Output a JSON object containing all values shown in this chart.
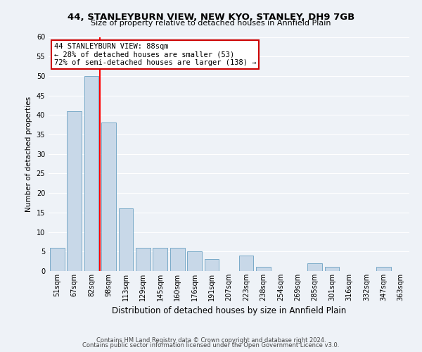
{
  "title": "44, STANLEYBURN VIEW, NEW KYO, STANLEY, DH9 7GB",
  "subtitle": "Size of property relative to detached houses in Annfield Plain",
  "xlabel": "Distribution of detached houses by size in Annfield Plain",
  "ylabel": "Number of detached properties",
  "bin_labels": [
    "51sqm",
    "67sqm",
    "82sqm",
    "98sqm",
    "113sqm",
    "129sqm",
    "145sqm",
    "160sqm",
    "176sqm",
    "191sqm",
    "207sqm",
    "223sqm",
    "238sqm",
    "254sqm",
    "269sqm",
    "285sqm",
    "301sqm",
    "316sqm",
    "332sqm",
    "347sqm",
    "363sqm"
  ],
  "bar_heights": [
    6,
    41,
    50,
    38,
    16,
    6,
    6,
    6,
    5,
    3,
    0,
    4,
    1,
    0,
    0,
    2,
    1,
    0,
    0,
    1,
    0
  ],
  "bar_color": "#c8d8e8",
  "bar_edge_color": "#7aaac8",
  "vline_x_index": 2.5,
  "vline_color": "red",
  "ylim": [
    0,
    60
  ],
  "yticks": [
    0,
    5,
    10,
    15,
    20,
    25,
    30,
    35,
    40,
    45,
    50,
    55,
    60
  ],
  "annotation_text": "44 STANLEYBURN VIEW: 88sqm\n← 28% of detached houses are smaller (53)\n72% of semi-detached houses are larger (138) →",
  "annotation_box_color": "white",
  "annotation_box_edge": "#cc0000",
  "footer1": "Contains HM Land Registry data © Crown copyright and database right 2024.",
  "footer2": "Contains public sector information licensed under the Open Government Licence v3.0.",
  "background_color": "#eef2f7",
  "grid_color": "white",
  "title_fontsize": 9.5,
  "subtitle_fontsize": 8.0,
  "ylabel_fontsize": 7.5,
  "xlabel_fontsize": 8.5,
  "tick_fontsize": 7,
  "annotation_fontsize": 7.5,
  "footer_fontsize": 6.0
}
